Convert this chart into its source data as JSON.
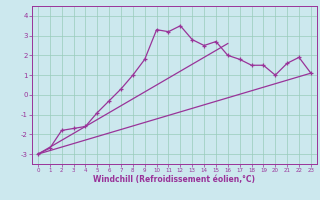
{
  "xlabel": "Windchill (Refroidissement éolien,°C)",
  "bg_color": "#cce8ee",
  "line_color": "#993399",
  "grid_color": "#99ccbb",
  "x_data": [
    0,
    1,
    2,
    3,
    4,
    5,
    6,
    7,
    8,
    9,
    10,
    11,
    12,
    13,
    14,
    15,
    16,
    17,
    18,
    19,
    20,
    21,
    22,
    23
  ],
  "y_curve": [
    -3.0,
    -2.7,
    -1.8,
    -1.7,
    -1.6,
    -0.9,
    -0.3,
    0.3,
    1.0,
    1.8,
    3.3,
    3.2,
    3.5,
    2.8,
    2.5,
    2.7,
    2.0,
    1.8,
    1.5,
    1.5,
    1.0,
    1.6,
    1.9,
    1.1
  ],
  "line1_x": [
    0,
    16
  ],
  "line1_y": [
    -3.0,
    2.6
  ],
  "line2_x": [
    0,
    23
  ],
  "line2_y": [
    -3.0,
    1.1
  ],
  "ylim": [
    -3.5,
    4.5
  ],
  "xlim": [
    -0.5,
    23.5
  ],
  "yticks": [
    -3,
    -2,
    -1,
    0,
    1,
    2,
    3,
    4
  ],
  "ytick_labels": [
    "-3",
    "-2",
    "-1",
    "0",
    "1",
    "2",
    "3",
    "4"
  ]
}
